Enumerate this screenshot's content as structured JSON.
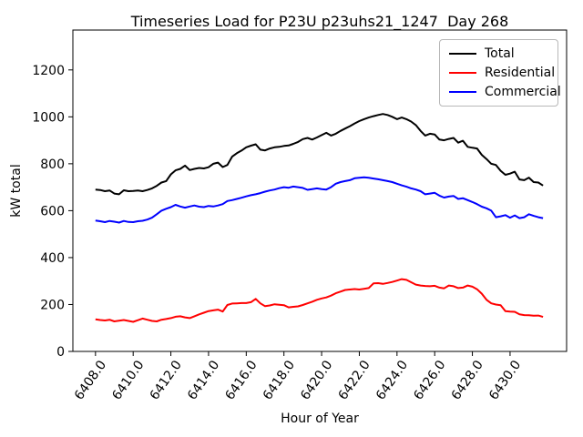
{
  "chart_data": {
    "type": "line",
    "title": "Timeseries Load for P23U p23uhs21_1247  Day 268",
    "xlabel": "Hour of Year",
    "ylabel": "kW total",
    "xlim": [
      6406.8,
      6433.0
    ],
    "ylim": [
      0,
      1370
    ],
    "grid": false,
    "legend_position": "upper right",
    "xticks": [
      6408,
      6410,
      6412,
      6414,
      6416,
      6418,
      6420,
      6422,
      6424,
      6426,
      6428,
      6430
    ],
    "xtick_labels": [
      "6408.0",
      "6410.0",
      "6412.0",
      "6414.0",
      "6416.0",
      "6418.0",
      "6420.0",
      "6422.0",
      "6424.0",
      "6426.0",
      "6428.0",
      "6430.0"
    ],
    "yticks": [
      0,
      200,
      400,
      600,
      800,
      1000,
      1200
    ],
    "ytick_labels": [
      "0",
      "200",
      "400",
      "600",
      "800",
      "1000",
      "1200"
    ],
    "x_start": 6408.0,
    "x_step": 0.25,
    "series": [
      {
        "name": "Total",
        "color": "#000000",
        "values": [
          690,
          688,
          683,
          686,
          673,
          670,
          687,
          683,
          684,
          686,
          683,
          688,
          695,
          706,
          720,
          726,
          755,
          772,
          778,
          792,
          773,
          778,
          782,
          780,
          785,
          800,
          805,
          786,
          795,
          830,
          845,
          856,
          870,
          877,
          883,
          860,
          857,
          865,
          870,
          872,
          876,
          878,
          885,
          893,
          905,
          910,
          903,
          912,
          922,
          932,
          920,
          928,
          940,
          950,
          960,
          972,
          982,
          990,
          997,
          1003,
          1008,
          1012,
          1008,
          1000,
          990,
          997,
          990,
          980,
          965,
          940,
          920,
          928,
          925,
          903,
          900,
          906,
          910,
          890,
          898,
          872,
          868,
          865,
          838,
          820,
          800,
          795,
          770,
          753,
          758,
          766,
          733,
          730,
          741,
          722,
          720,
          707
        ]
      },
      {
        "name": "Residential",
        "color": "#ff0000",
        "values": [
          137,
          134,
          132,
          135,
          128,
          131,
          134,
          130,
          126,
          133,
          140,
          135,
          130,
          128,
          135,
          138,
          142,
          148,
          150,
          145,
          142,
          150,
          158,
          165,
          172,
          175,
          178,
          170,
          198,
          204,
          205,
          206,
          206,
          210,
          224,
          205,
          193,
          196,
          201,
          199,
          197,
          188,
          190,
          192,
          198,
          205,
          212,
          220,
          226,
          230,
          238,
          248,
          255,
          262,
          264,
          266,
          264,
          267,
          270,
          290,
          291,
          288,
          292,
          296,
          302,
          308,
          305,
          295,
          285,
          281,
          279,
          278,
          280,
          272,
          269,
          281,
          278,
          270,
          272,
          281,
          276,
          265,
          246,
          220,
          205,
          200,
          197,
          172,
          170,
          169,
          158,
          155,
          154,
          152,
          153,
          147
        ]
      },
      {
        "name": "Commercial",
        "color": "#0000ff",
        "values": [
          558,
          555,
          551,
          556,
          553,
          549,
          556,
          552,
          551,
          555,
          557,
          562,
          570,
          585,
          600,
          608,
          615,
          625,
          618,
          613,
          618,
          622,
          617,
          615,
          620,
          618,
          622,
          628,
          641,
          645,
          650,
          655,
          661,
          666,
          670,
          675,
          681,
          686,
          690,
          696,
          700,
          698,
          703,
          700,
          697,
          689,
          692,
          695,
          692,
          690,
          700,
          715,
          722,
          726,
          730,
          738,
          740,
          742,
          740,
          737,
          734,
          730,
          726,
          722,
          715,
          708,
          702,
          695,
          690,
          683,
          670,
          673,
          676,
          664,
          656,
          660,
          663,
          650,
          653,
          645,
          637,
          628,
          617,
          610,
          600,
          572,
          576,
          581,
          570,
          580,
          568,
          572,
          585,
          578,
          572,
          568
        ]
      }
    ]
  }
}
